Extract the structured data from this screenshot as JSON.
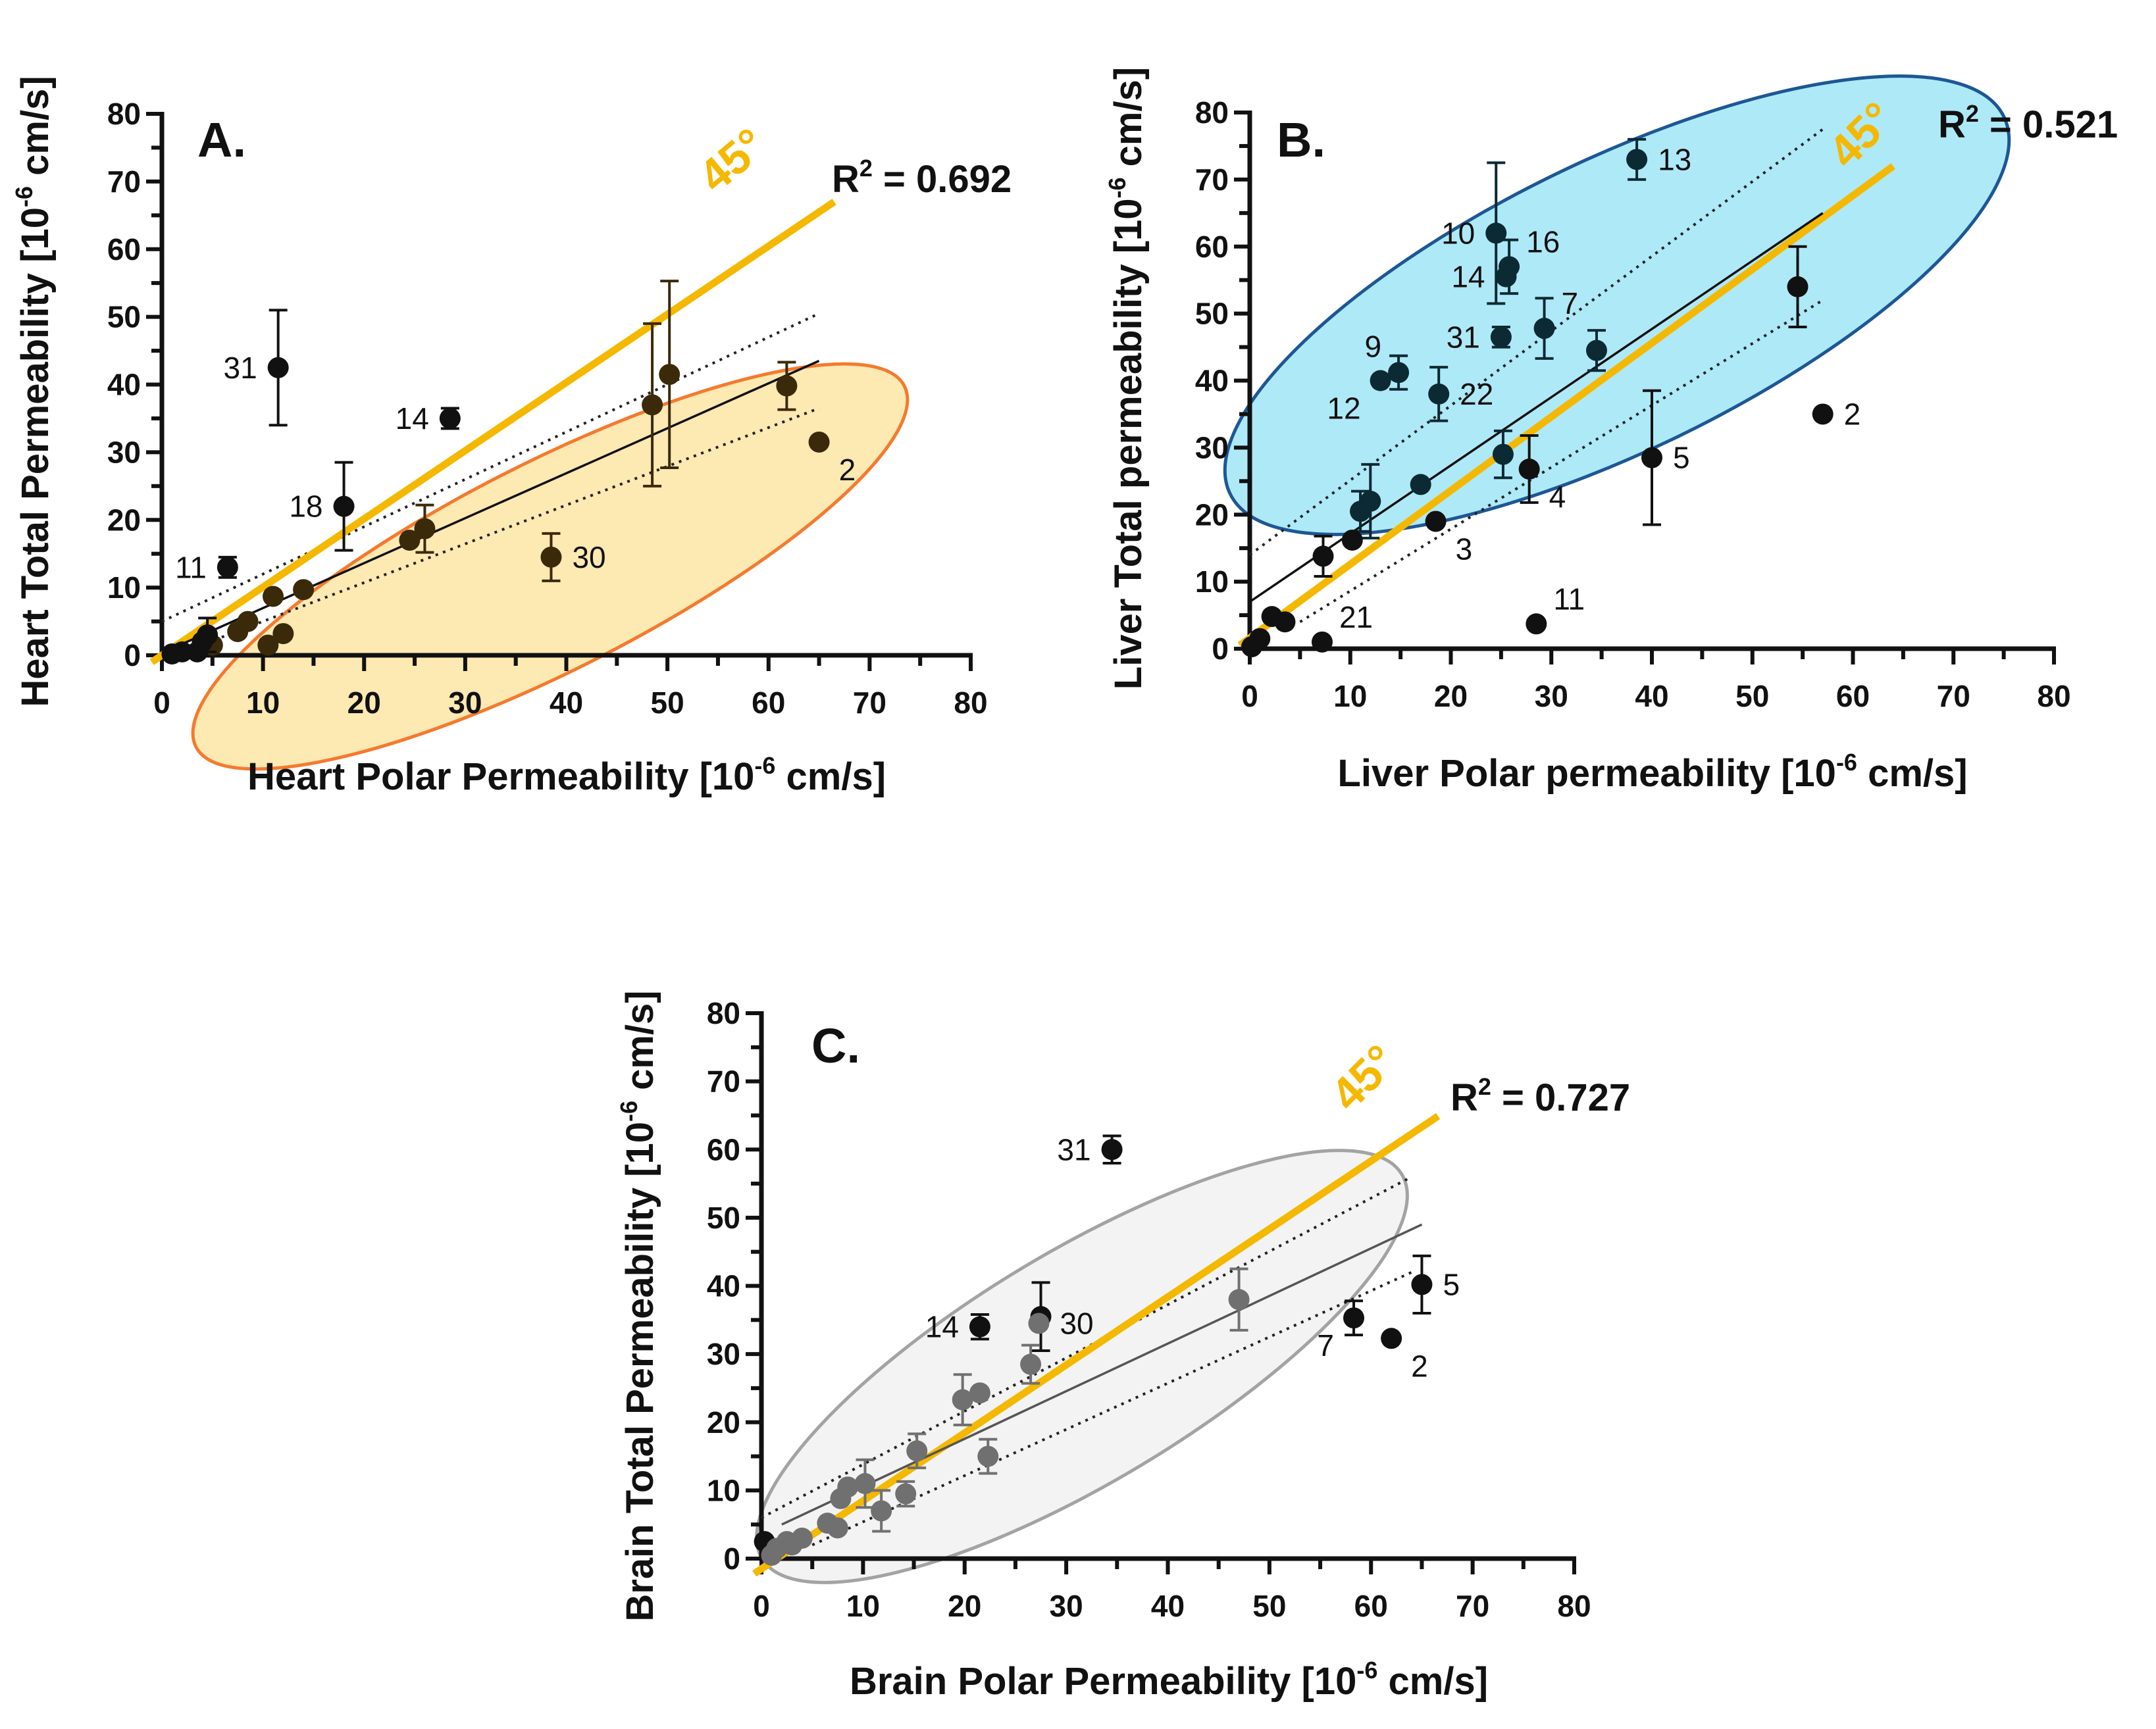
{
  "colors": {
    "identity_line": "#f5b800",
    "axis": "#111111",
    "outside_points": "#111111"
  },
  "chart_data": [
    {
      "panel": "A.",
      "type": "scatter",
      "xlabel": {
        "main": "Heart Polar Permeability [10",
        "sup": "-6",
        "tail": " cm/s]"
      },
      "ylabel": {
        "main": "Heart Total Permeability [10",
        "sup": "-6",
        "tail": " cm/s]"
      },
      "xlim": [
        0,
        80
      ],
      "ylim": [
        0,
        80
      ],
      "ticks": [
        0,
        10,
        20,
        30,
        40,
        50,
        60,
        70,
        80
      ],
      "r2": {
        "main": "R",
        "sup": "2",
        "tail": " = 0.692"
      },
      "reference_label": "45°",
      "ellipse": {
        "fill": "#fde9b2",
        "stroke": "#f47a2e"
      },
      "inside_color": "#3a2a0a",
      "lines": {
        "identity": [
          [
            -1,
            -1
          ],
          [
            66.5,
            67
          ]
        ],
        "fit": [
          [
            1,
            1
          ],
          [
            65,
            43.5
          ]
        ],
        "ci_upper": [
          [
            0,
            5
          ],
          [
            65,
            50.5
          ]
        ],
        "ci_lower": [
          [
            3,
            1
          ],
          [
            65,
            36.5
          ]
        ]
      },
      "points": [
        {
          "x": 11.5,
          "y": 42.5,
          "err": 8.5,
          "label": "31",
          "side": "l",
          "group": "out"
        },
        {
          "x": 28.5,
          "y": 35,
          "err": 1.5,
          "label": "14",
          "side": "l",
          "group": "out"
        },
        {
          "x": 18,
          "y": 22,
          "err": 6.5,
          "label": "18",
          "side": "l",
          "group": "out"
        },
        {
          "x": 6.5,
          "y": 13,
          "err": 1.5,
          "label": "11",
          "side": "l",
          "group": "out"
        },
        {
          "x": 65,
          "y": 31.5,
          "err": 0,
          "label": "2",
          "side": "lr",
          "group": "in"
        },
        {
          "x": 38.5,
          "y": 14.5,
          "err": 3.5,
          "label": "30",
          "side": "r",
          "group": "in"
        },
        {
          "x": 48.5,
          "y": 37,
          "err": 12,
          "label": "",
          "side": "",
          "group": "in"
        },
        {
          "x": 50.2,
          "y": 41.5,
          "err": 13.8,
          "label": "",
          "side": "",
          "group": "in"
        },
        {
          "x": 61.8,
          "y": 39.8,
          "err": 3.5,
          "label": "",
          "side": "",
          "group": "in"
        },
        {
          "x": 24.5,
          "y": 17,
          "err": 0,
          "label": "",
          "side": "",
          "group": "in"
        },
        {
          "x": 26,
          "y": 18.7,
          "err": 3.5,
          "label": "",
          "side": "",
          "group": "in"
        },
        {
          "x": 14,
          "y": 9.7,
          "err": 0,
          "label": "",
          "side": "",
          "group": "in"
        },
        {
          "x": 11,
          "y": 8.7,
          "err": 0,
          "label": "",
          "side": "",
          "group": "in"
        },
        {
          "x": 12,
          "y": 3.2,
          "err": 0,
          "label": "",
          "side": "",
          "group": "in"
        },
        {
          "x": 10.5,
          "y": 1.5,
          "err": 0,
          "label": "",
          "side": "",
          "group": "in"
        },
        {
          "x": 8.5,
          "y": 5,
          "err": 0,
          "label": "",
          "side": "",
          "group": "in"
        },
        {
          "x": 7.5,
          "y": 3.5,
          "err": 0,
          "label": "",
          "side": "",
          "group": "in"
        },
        {
          "x": 5,
          "y": 1.5,
          "err": 0,
          "label": "",
          "side": "",
          "group": "in"
        },
        {
          "x": 4.5,
          "y": 3,
          "err": 2.5,
          "label": "",
          "side": "",
          "group": "out"
        },
        {
          "x": 4,
          "y": 2,
          "err": 0,
          "label": "",
          "side": "",
          "group": "out"
        },
        {
          "x": 3.5,
          "y": 0.5,
          "err": 0,
          "label": "",
          "side": "",
          "group": "out"
        },
        {
          "x": 2,
          "y": 0.5,
          "err": 0,
          "label": "",
          "side": "",
          "group": "out"
        },
        {
          "x": 1,
          "y": 0.2,
          "err": 0,
          "label": "",
          "side": "",
          "group": "out"
        }
      ]
    },
    {
      "panel": "B.",
      "type": "scatter",
      "xlabel": {
        "main": "Liver Polar permeability [10",
        "sup": "-6",
        "tail": " cm/s]"
      },
      "ylabel": {
        "main": "Liver Total permeability [10",
        "sup": "-6",
        "tail": " cm/s]"
      },
      "xlim": [
        0,
        80
      ],
      "ylim": [
        0,
        80
      ],
      "ticks": [
        0,
        10,
        20,
        30,
        40,
        50,
        60,
        70,
        80
      ],
      "r2": {
        "main": "R",
        "sup": "2",
        "tail": " = 0.521"
      },
      "reference_label": "45°",
      "ellipse": {
        "fill": "#aee9f8",
        "stroke": "#1d5795"
      },
      "inside_color": "#0c2a33",
      "lines": {
        "identity": [
          [
            -1,
            0.5
          ],
          [
            64,
            72
          ]
        ],
        "fit": [
          [
            0,
            7
          ],
          [
            57,
            65
          ]
        ],
        "ci_upper": [
          [
            0,
            14
          ],
          [
            57,
            77.5
          ]
        ],
        "ci_lower": [
          [
            5,
            4
          ],
          [
            57,
            52
          ]
        ]
      },
      "points": [
        {
          "x": 38.5,
          "y": 73,
          "err": 3,
          "label": "13",
          "side": "r",
          "group": "in"
        },
        {
          "x": 24.5,
          "y": 62,
          "err": 10.5,
          "label": "10",
          "side": "l",
          "group": "in"
        },
        {
          "x": 25.8,
          "y": 57,
          "err": 4,
          "label": "16",
          "side": "ur",
          "group": "in"
        },
        {
          "x": 25.5,
          "y": 55.5,
          "err": 0,
          "label": "14",
          "side": "l",
          "group": "in"
        },
        {
          "x": 29.3,
          "y": 47.8,
          "err": 4.5,
          "label": "7",
          "side": "ur",
          "group": "in"
        },
        {
          "x": 25,
          "y": 46.5,
          "err": 1.5,
          "label": "31",
          "side": "l",
          "group": "in"
        },
        {
          "x": 34.5,
          "y": 44.5,
          "err": 3,
          "label": "",
          "side": "",
          "group": "in"
        },
        {
          "x": 14.8,
          "y": 41.2,
          "err": 2.5,
          "label": "9",
          "side": "ul",
          "group": "in"
        },
        {
          "x": 13,
          "y": 40,
          "err": 0,
          "label": "12",
          "side": "ll",
          "group": "in"
        },
        {
          "x": 18.8,
          "y": 38,
          "err": 4,
          "label": "22",
          "side": "r",
          "group": "in"
        },
        {
          "x": 25.2,
          "y": 29,
          "err": 3.5,
          "label": "",
          "side": "",
          "group": "in"
        },
        {
          "x": 17,
          "y": 24.5,
          "err": 0,
          "label": "",
          "side": "",
          "group": "in"
        },
        {
          "x": 12,
          "y": 22,
          "err": 5.5,
          "label": "",
          "side": "",
          "group": "in"
        },
        {
          "x": 11,
          "y": 20.5,
          "err": 3,
          "label": "",
          "side": "",
          "group": "in"
        },
        {
          "x": 54.5,
          "y": 54,
          "err": 6,
          "label": "",
          "side": "",
          "group": "out"
        },
        {
          "x": 57,
          "y": 35,
          "err": 0,
          "label": "2",
          "side": "r",
          "group": "out"
        },
        {
          "x": 40,
          "y": 28.5,
          "err": 10,
          "label": "5",
          "side": "r",
          "group": "out"
        },
        {
          "x": 27.8,
          "y": 26.8,
          "err": 5,
          "label": "4",
          "side": "lr",
          "group": "out"
        },
        {
          "x": 18.5,
          "y": 19,
          "err": 0,
          "label": "3",
          "side": "lr",
          "group": "out"
        },
        {
          "x": 28.5,
          "y": 3.7,
          "err": 0,
          "label": "11",
          "side": "ur",
          "group": "out"
        },
        {
          "x": 7.2,
          "y": 1,
          "err": 0,
          "label": "21",
          "side": "ur",
          "group": "out"
        },
        {
          "x": 10.2,
          "y": 16.2,
          "err": 0,
          "label": "",
          "side": "",
          "group": "out"
        },
        {
          "x": 7.3,
          "y": 13.8,
          "err": 3,
          "label": "",
          "side": "",
          "group": "out"
        },
        {
          "x": 2.2,
          "y": 4.8,
          "err": 0,
          "label": "",
          "side": "",
          "group": "out"
        },
        {
          "x": 3.5,
          "y": 4,
          "err": 0,
          "label": "",
          "side": "",
          "group": "out"
        },
        {
          "x": 1,
          "y": 1.5,
          "err": 0,
          "label": "",
          "side": "",
          "group": "out"
        },
        {
          "x": 0.2,
          "y": 0.3,
          "err": 0,
          "label": "",
          "side": "",
          "group": "out"
        }
      ]
    },
    {
      "panel": "C.",
      "type": "scatter",
      "xlabel": {
        "main": "Brain Polar Permeability [10",
        "sup": "-6",
        "tail": " cm/s]"
      },
      "ylabel": {
        "main": "Brain Total  Permeability [10",
        "sup": "-6",
        "tail": " cm/s]"
      },
      "xlim": [
        0,
        80
      ],
      "ylim": [
        0,
        80
      ],
      "ticks": [
        0,
        10,
        20,
        30,
        40,
        50,
        60,
        70,
        80
      ],
      "r2": {
        "main": "R",
        "sup": "2",
        "tail": " = 0.727"
      },
      "reference_label": "45°",
      "ellipse": {
        "fill": "#f3f3f3",
        "stroke": "#a3a3a3"
      },
      "inside_color": "#707070",
      "lines": {
        "identity": [
          [
            -0.7,
            -2.2
          ],
          [
            66.6,
            64.9
          ]
        ],
        "fit": [
          [
            2,
            5
          ],
          [
            65,
            49
          ]
        ],
        "ci_upper": [
          [
            0,
            6
          ],
          [
            64,
            56
          ]
        ],
        "ci_lower": [
          [
            5,
            2
          ],
          [
            64,
            42
          ]
        ]
      },
      "points": [
        {
          "x": 34.5,
          "y": 60,
          "err": 2,
          "label": "31",
          "side": "l",
          "group": "out"
        },
        {
          "x": 21.5,
          "y": 34,
          "err": 1.8,
          "label": "14",
          "side": "l",
          "group": "out"
        },
        {
          "x": 27.5,
          "y": 35.5,
          "err": 5,
          "label": "",
          "side": "",
          "group": "out"
        },
        {
          "x": 27.3,
          "y": 34.5,
          "err": 0,
          "label": "30",
          "side": "r",
          "group": "in"
        },
        {
          "x": 58.3,
          "y": 35.3,
          "err": 2.5,
          "label": "7",
          "side": "ll",
          "group": "out"
        },
        {
          "x": 62,
          "y": 32.3,
          "err": 0,
          "label": "2",
          "side": "lr",
          "group": "out"
        },
        {
          "x": 65,
          "y": 40.2,
          "err": 4.2,
          "label": "5",
          "side": "r",
          "group": "out"
        },
        {
          "x": 0.3,
          "y": 2.5,
          "err": 0,
          "label": "",
          "side": "",
          "group": "out"
        },
        {
          "x": 47,
          "y": 38,
          "err": 4.5,
          "label": "",
          "side": "",
          "group": "in"
        },
        {
          "x": 26.5,
          "y": 28.5,
          "err": 2.8,
          "label": "",
          "side": "",
          "group": "in"
        },
        {
          "x": 19.8,
          "y": 23.3,
          "err": 3.7,
          "label": "",
          "side": "",
          "group": "in"
        },
        {
          "x": 21.5,
          "y": 24.3,
          "err": 0,
          "label": "",
          "side": "",
          "group": "in"
        },
        {
          "x": 22.3,
          "y": 15,
          "err": 2.5,
          "label": "",
          "side": "",
          "group": "in"
        },
        {
          "x": 15.3,
          "y": 15.8,
          "err": 2.5,
          "label": "",
          "side": "",
          "group": "in"
        },
        {
          "x": 14.2,
          "y": 9.5,
          "err": 1.8,
          "label": "",
          "side": "",
          "group": "in"
        },
        {
          "x": 10.2,
          "y": 11,
          "err": 3.5,
          "label": "",
          "side": "",
          "group": "in"
        },
        {
          "x": 8.5,
          "y": 10.5,
          "err": 0,
          "label": "",
          "side": "",
          "group": "in"
        },
        {
          "x": 7.8,
          "y": 8.8,
          "err": 0,
          "label": "",
          "side": "",
          "group": "in"
        },
        {
          "x": 11.8,
          "y": 7,
          "err": 3,
          "label": "",
          "side": "",
          "group": "in"
        },
        {
          "x": 7.5,
          "y": 4.5,
          "err": 0,
          "label": "",
          "side": "",
          "group": "in"
        },
        {
          "x": 6.5,
          "y": 5.2,
          "err": 0,
          "label": "",
          "side": "",
          "group": "in"
        },
        {
          "x": 4,
          "y": 3,
          "err": 0,
          "label": "",
          "side": "",
          "group": "in"
        },
        {
          "x": 3,
          "y": 2,
          "err": 0,
          "label": "",
          "side": "",
          "group": "in"
        },
        {
          "x": 2.5,
          "y": 2.5,
          "err": 0,
          "label": "",
          "side": "",
          "group": "in"
        },
        {
          "x": 1.5,
          "y": 1.5,
          "err": 0,
          "label": "",
          "side": "",
          "group": "in"
        },
        {
          "x": 1,
          "y": 0.5,
          "err": 0,
          "label": "",
          "side": "",
          "group": "in"
        }
      ]
    }
  ]
}
